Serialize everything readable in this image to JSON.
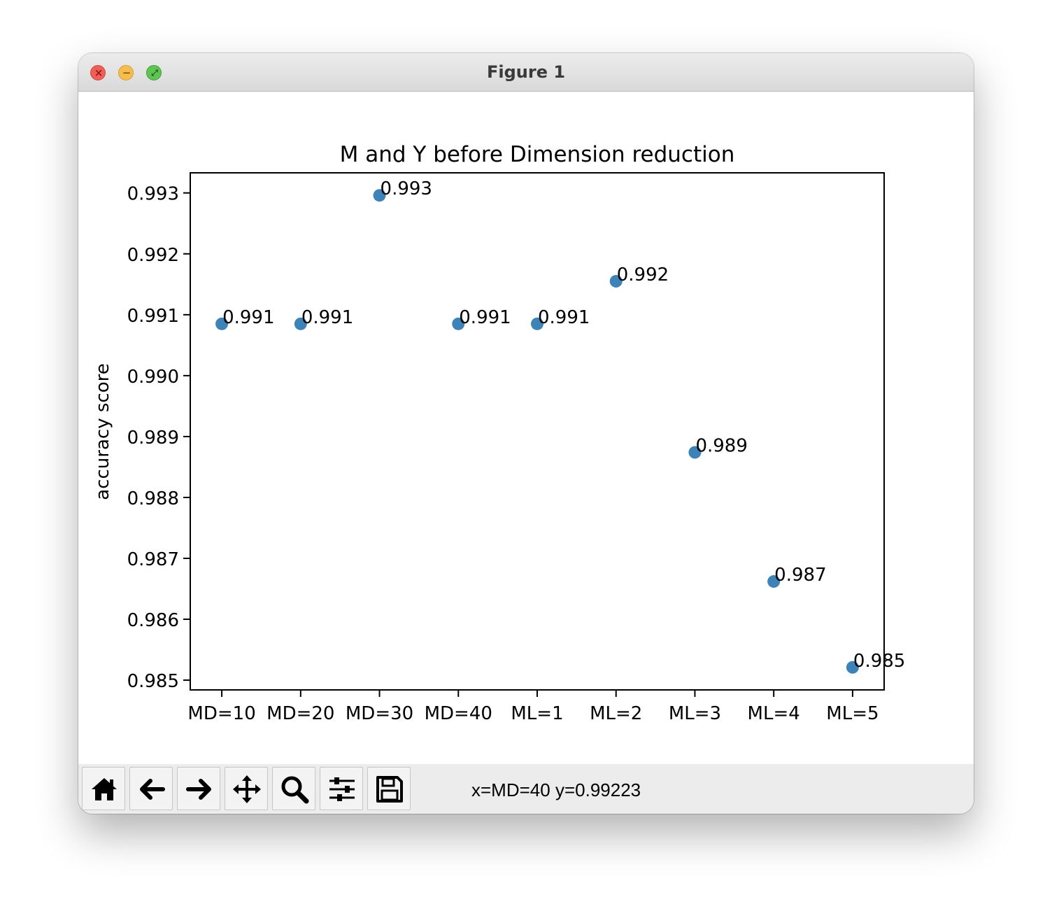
{
  "window": {
    "title": "Figure 1"
  },
  "toolbar": {
    "buttons": [
      {
        "icon": "home-icon",
        "name": "home-button"
      },
      {
        "icon": "arrow-left-icon",
        "name": "back-button"
      },
      {
        "icon": "arrow-right-icon",
        "name": "forward-button"
      },
      {
        "icon": "move-icon",
        "name": "pan-button"
      },
      {
        "icon": "search-icon",
        "name": "zoom-button"
      },
      {
        "icon": "sliders-icon",
        "name": "configure-subplots-button"
      },
      {
        "icon": "save-icon",
        "name": "save-button"
      }
    ],
    "status": "x=MD=40 y=0.99223"
  },
  "colors": {
    "marker": "#3d83b7",
    "axes": "#000000",
    "titlebar": "#e3e3e3",
    "toolbar": "#ececec"
  },
  "chart_data": {
    "type": "scatter",
    "title": "M and Y before Dimension reduction",
    "xlabel": "",
    "ylabel": "accuracy score",
    "categories": [
      "MD=10",
      "MD=20",
      "MD=30",
      "MD=40",
      "ML=1",
      "ML=2",
      "ML=3",
      "ML=4",
      "ML=5"
    ],
    "values": [
      0.99085,
      0.99085,
      0.99296,
      0.99085,
      0.99085,
      0.99155,
      0.98874,
      0.98662,
      0.98521
    ],
    "point_labels": [
      "0.991",
      "0.991",
      "0.993",
      "0.991",
      "0.991",
      "0.992",
      "0.989",
      "0.987",
      "0.985"
    ],
    "yticks": [
      "0.985",
      "0.986",
      "0.987",
      "0.988",
      "0.989",
      "0.990",
      "0.991",
      "0.992",
      "0.993"
    ],
    "ytick_values": [
      0.985,
      0.986,
      0.987,
      0.988,
      0.989,
      0.99,
      0.991,
      0.992,
      0.993
    ],
    "ylim": [
      0.98484,
      0.99333
    ],
    "grid": false,
    "legend": false
  }
}
